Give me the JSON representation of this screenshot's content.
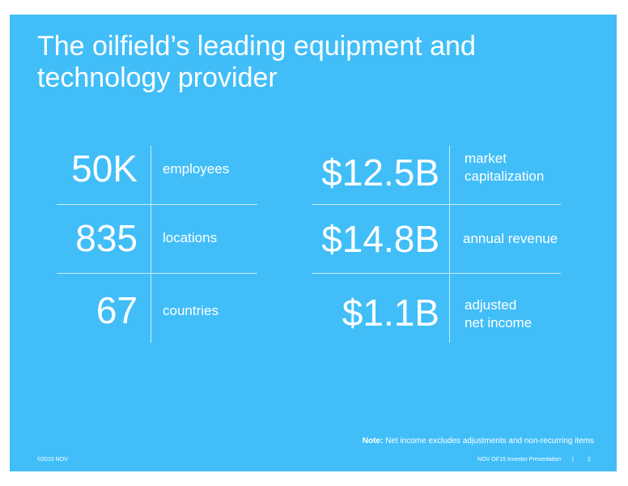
{
  "header": {
    "title_lines": [
      "The oilfield’s leading equipment and",
      "technology provider"
    ]
  },
  "left_stats": [
    {
      "value": "50K",
      "label_lines": [
        "employees"
      ]
    },
    {
      "value": "835",
      "label_lines": [
        "locations"
      ]
    },
    {
      "value": "67",
      "label_lines": [
        "countries"
      ]
    }
  ],
  "right_stats": [
    {
      "value": "$12.5B",
      "label_lines": [
        "market",
        "capitalization"
      ]
    },
    {
      "value": "$14.8B",
      "label_lines": [
        "annual revenue"
      ]
    },
    {
      "value": "$1.1B",
      "label_lines": [
        "adjusted",
        "net income"
      ]
    }
  ],
  "note": {
    "prefix": "Note:",
    "text": "Net income excludes adjustments and non-recurring items"
  },
  "footer": {
    "copyright": "©2015 NOV",
    "presentation": "NOV Oil’15 Investor Presentation",
    "separator": "|",
    "page": "2"
  }
}
